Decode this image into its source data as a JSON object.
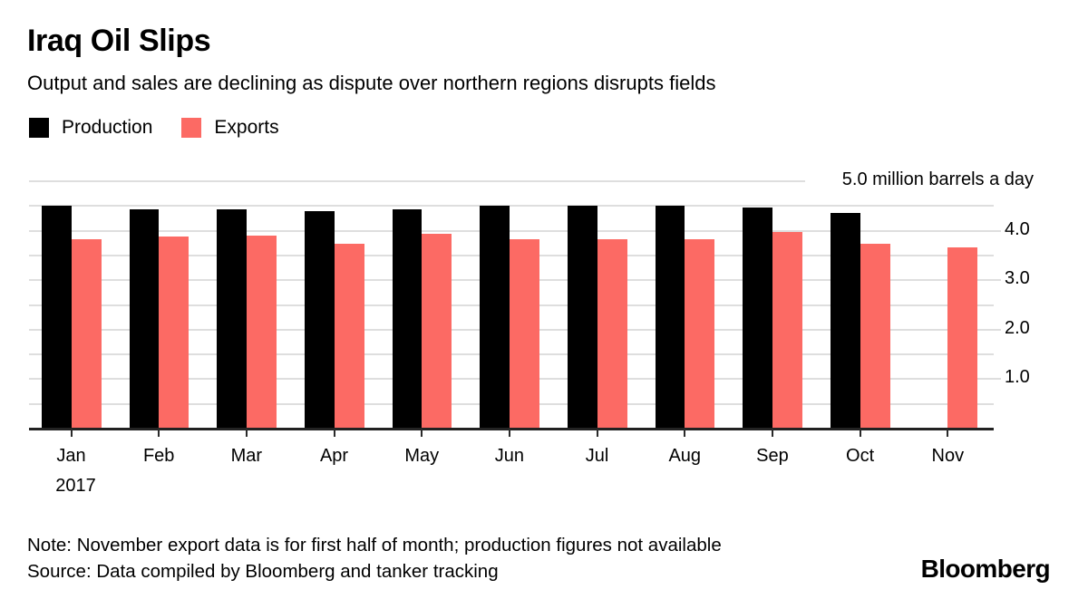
{
  "title": "Iraq Oil Slips",
  "subtitle": "Output and sales are declining as dispute over northern regions disrupts fields",
  "legend": [
    {
      "label": "Production",
      "color": "#000000"
    },
    {
      "label": "Exports",
      "color": "#fc6a64"
    }
  ],
  "note": "Note: November export data is for first half of month; production figures not available",
  "source": "Source: Data compiled by Bloomberg and tanker tracking",
  "brand": "Bloomberg",
  "chart_data": {
    "type": "bar",
    "title": "Iraq Oil Slips",
    "subtitle": "Output and sales are declining as dispute over northern regions disrupts fields",
    "unit": "million barrels a day",
    "categories": [
      "Jan",
      "Feb",
      "Mar",
      "Apr",
      "May",
      "Jun",
      "Jul",
      "Aug",
      "Sep",
      "Oct",
      "Nov"
    ],
    "x_year_label": "2017",
    "series": [
      {
        "name": "Production",
        "color": "#000000",
        "values": [
          4.51,
          4.44,
          4.44,
          4.4,
          4.44,
          4.5,
          4.5,
          4.5,
          4.47,
          4.35,
          null
        ]
      },
      {
        "name": "Exports",
        "color": "#fc6a64",
        "values": [
          3.82,
          3.88,
          3.91,
          3.74,
          3.94,
          3.82,
          3.82,
          3.82,
          3.98,
          3.74,
          3.66
        ]
      }
    ],
    "y_axis": {
      "min": 0,
      "max": 5.0,
      "gridline_step": 0.5,
      "tick_values": [
        1.0,
        2.0,
        3.0,
        4.0
      ],
      "tick_labels": [
        "1.0",
        "2.0",
        "3.0",
        "4.0"
      ],
      "top_label": "5.0 million barrels a day"
    },
    "grid_color": "#dedede",
    "baseline_color": "#222222",
    "legend_position": "top-left",
    "grid": true
  }
}
